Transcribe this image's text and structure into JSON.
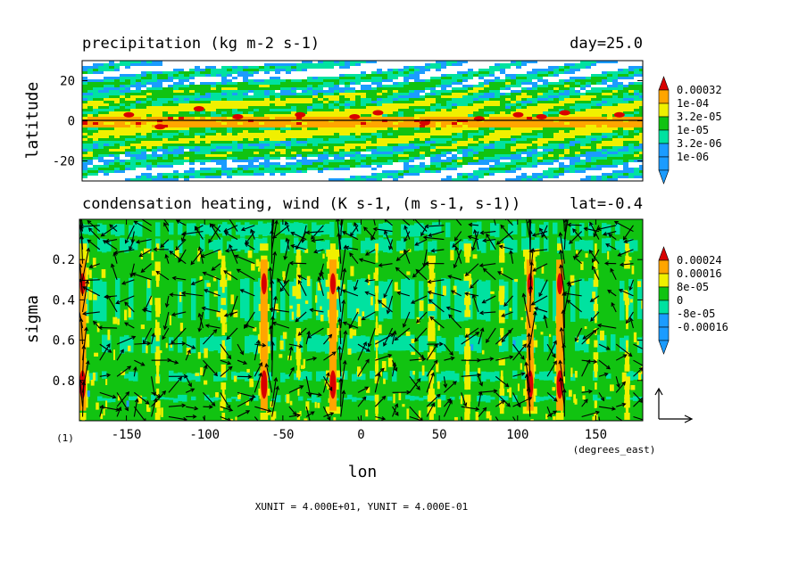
{
  "chart_data": [
    {
      "type": "heatmap",
      "title": "precipitation (kg m-2 s-1)",
      "title_right": "day=25.0",
      "ylabel": "latitude",
      "xlim": [
        -180,
        180
      ],
      "ylim": [
        -30,
        30
      ],
      "yticks": [
        -20,
        0,
        20
      ],
      "ytick_labels": [
        "-20",
        "0",
        "20"
      ],
      "legend_levels": [
        "0.00032",
        "1e-04",
        "3.2e-05",
        "1e-05",
        "3.2e-06",
        "1e-06"
      ],
      "colors": [
        "#d80000",
        "#ffa500",
        "#f0f000",
        "#11c311",
        "#00e2a0",
        "#1b9cff",
        "#ffffff"
      ],
      "description_zero_line": true
    },
    {
      "type": "heatmap",
      "title": "condensation heating, wind (K s-1, (m s-1, s-1))",
      "title_right": "lat=-0.4",
      "ylabel": "sigma",
      "xlabel": "lon",
      "xunits_label": "(degrees_east)",
      "xlim": [
        -180,
        180
      ],
      "ylim": [
        1.0,
        0.0
      ],
      "xticks": [
        -150,
        -100,
        -50,
        0,
        50,
        100,
        150
      ],
      "xtick_labels": [
        "-150",
        "-100",
        "-50",
        "0",
        "50",
        "100",
        "150"
      ],
      "yticks": [
        0.2,
        0.4,
        0.6,
        0.8
      ],
      "ytick_labels": [
        "0.2",
        "0.4",
        "0.6",
        "0.8"
      ],
      "legend_levels": [
        "0.00024",
        "0.00016",
        "8e-05",
        "0",
        "-8e-05",
        "-0.00016"
      ],
      "colors": [
        "#d80000",
        "#ffa500",
        "#f0f000",
        "#11c311",
        "#00e2a0",
        "#1b9cff"
      ],
      "strong_heating_columns_lon": [
        -178,
        -62,
        -18,
        108,
        127
      ],
      "vector_field": "wind arrows overlaid"
    }
  ],
  "figure_number": "(1)",
  "unit_note": "XUNIT = 4.000E+01, YUNIT = 4.000E-01"
}
